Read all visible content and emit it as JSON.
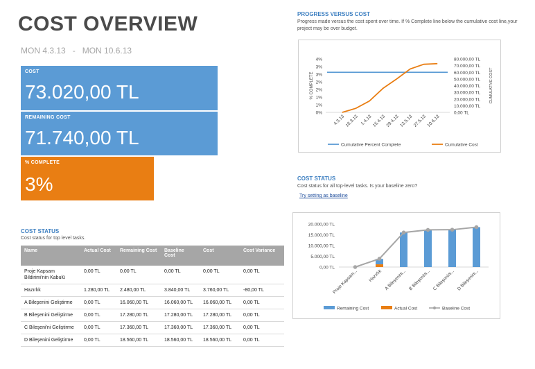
{
  "title": "COST OVERVIEW",
  "dates": "MON 4.3.13   -   MON 10.6.13",
  "cards": {
    "cost": {
      "label": "COST",
      "value": "73.020,00 TL",
      "color": "#5b9bd5"
    },
    "remaining": {
      "label": "REMAINING COST",
      "value": "71.740,00 TL",
      "color": "#5b9bd5"
    },
    "complete": {
      "label": "% COMPLETE",
      "value": "3%",
      "color": "#e97e13"
    }
  },
  "cost_status_table": {
    "title": "COST STATUS",
    "subtitle": "Cost status for top level tasks.",
    "headers": [
      "Name",
      "Actual Cost",
      "Remaining Cost",
      "Baseline Cost",
      "Cost",
      "Cost Variance"
    ],
    "rows": [
      [
        "Proje Kapsam Bildirimi'nin Kabulü",
        "0,00 TL",
        "0,00 TL",
        "0,00 TL",
        "0,00 TL",
        "0,00 TL"
      ],
      [
        "Hazırlık",
        "1.280,00 TL",
        "2.480,00 TL",
        "3.840,00 TL",
        "3.760,00 TL",
        "-80,00 TL"
      ],
      [
        "A Bileşenini Geliştirme",
        "0,00 TL",
        "16.060,00 TL",
        "16.060,00 TL",
        "16.060,00 TL",
        "0,00 TL"
      ],
      [
        "B Bileşenini Geliştirme",
        "0,00 TL",
        "17.280,00 TL",
        "17.280,00 TL",
        "17.280,00 TL",
        "0,00 TL"
      ],
      [
        "C Bileşeni'ni Geliştirme",
        "0,00 TL",
        "17.360,00 TL",
        "17.360,00 TL",
        "17.360,00 TL",
        "0,00 TL"
      ],
      [
        "D Bileşenini Geliştirme",
        "0,00 TL",
        "18.560,00 TL",
        "18.560,00 TL",
        "18.560,00 TL",
        "0,00 TL"
      ]
    ]
  },
  "progress_section": {
    "title": "PROGRESS VERSUS COST",
    "subtitle": "Progress made versus the cost spent over time. If % Complete line below the cumulative cost line,your project may be over budget."
  },
  "cost_status_chart_section": {
    "title": "COST STATUS",
    "subtitle": "Cost status for all top-level tasks. Is your baseline zero?",
    "link": "Try setting as baseline"
  },
  "chart_data": [
    {
      "type": "line",
      "x": [
        "4.3.13",
        "18.3.13",
        "1.4.13",
        "15.4.13",
        "29.4.13",
        "13.5.13",
        "27.5.13",
        "10.6.13"
      ],
      "y_left_label": "% COMPLETE",
      "y_left_ticks": [
        "0%",
        "1%",
        "1%",
        "2%",
        "2%",
        "3%",
        "3%",
        "4%"
      ],
      "y_left_range": [
        0,
        4
      ],
      "y_right_label": "CUMULATIVE COST",
      "y_right_ticks": [
        "0,00 TL",
        "10.000,00 TL",
        "20.000,00 TL",
        "30.000,00 TL",
        "40.000,00 TL",
        "50.000,00 TL",
        "60.000,00 TL",
        "70.000,00 TL",
        "80.000,00 TL"
      ],
      "y_right_range": [
        0,
        80000
      ],
      "series": [
        {
          "name": "Cumulative Percent Complete",
          "axis": "left",
          "color": "#5b9bd5",
          "values": [
            3,
            3,
            3,
            3,
            3,
            3,
            3,
            3
          ]
        },
        {
          "name": "Cumulative Cost",
          "axis": "right",
          "color": "#e97e13",
          "values": [
            0,
            6000,
            17000,
            36000,
            50000,
            65000,
            72000,
            73020
          ]
        }
      ],
      "legend": "bottom"
    },
    {
      "type": "bar",
      "categories": [
        "Proje Kapsam...",
        "Hazırlık",
        "A Bileşenini...",
        "B Bileşenini...",
        "C Bileşenini...",
        "D Bileşenini..."
      ],
      "y_ticks": [
        "0,00 TL",
        "5.000,00 TL",
        "10.000,00 TL",
        "15.000,00 TL",
        "20.000,00 TL"
      ],
      "ylim": [
        0,
        20000
      ],
      "stacked": true,
      "series": [
        {
          "name": "Remaining Cost",
          "kind": "bar",
          "color": "#5b9bd5",
          "values": [
            0,
            2480,
            16060,
            17280,
            17360,
            18560
          ]
        },
        {
          "name": "Actual Cost",
          "kind": "bar",
          "color": "#e97e13",
          "values": [
            0,
            1280,
            0,
            0,
            0,
            0
          ]
        },
        {
          "name": "Baseline Cost",
          "kind": "line",
          "color": "#a6a6a6",
          "values": [
            0,
            3840,
            16060,
            17280,
            17360,
            18560
          ]
        }
      ],
      "legend": "bottom"
    }
  ]
}
